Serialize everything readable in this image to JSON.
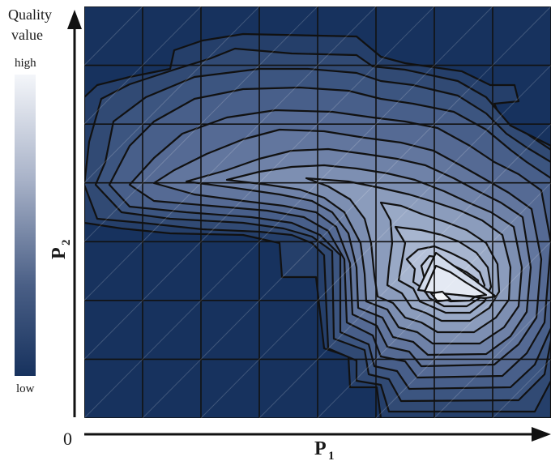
{
  "legend": {
    "title_line1": "Quality",
    "title_line2": "value",
    "high_label": "high",
    "low_label": "low",
    "color_high": "#f4f6fa",
    "color_low": "#17325e"
  },
  "axes": {
    "x_label": "P",
    "x_subscript": "1",
    "y_label": "P",
    "y_subscript": "2",
    "origin_label": "0",
    "x_arrow": "arrow-right-icon",
    "y_arrow": "arrow-up-icon"
  },
  "plot": {
    "background": "#17325e",
    "grid_color": "#111111",
    "contour_line_color": "#111111",
    "grid_columns": 8,
    "grid_rows": 7
  }
}
